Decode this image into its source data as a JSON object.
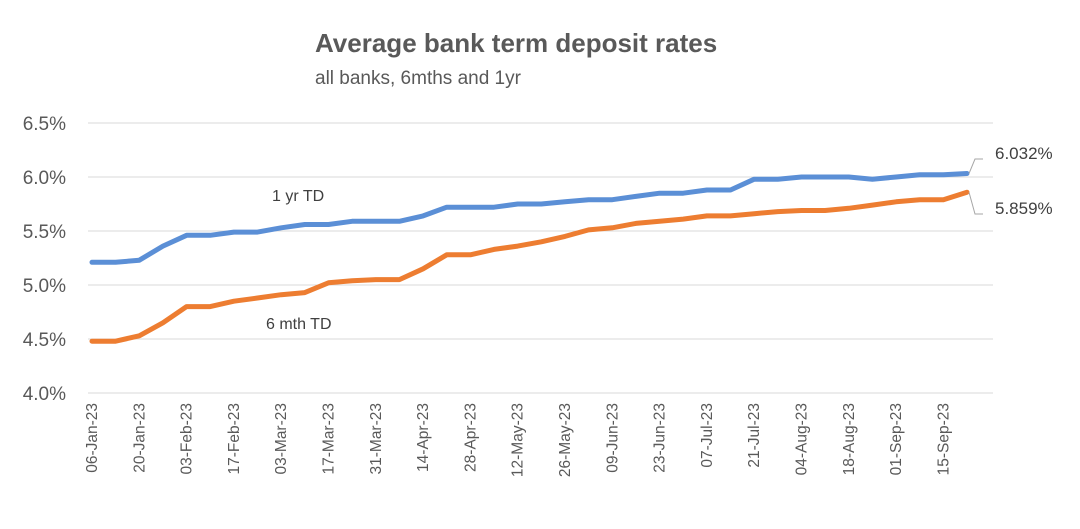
{
  "chart_data": {
    "type": "line",
    "title": "Average bank term deposit rates",
    "subtitle": "all banks, 6mths and 1yr",
    "ylim": [
      4.0,
      6.5
    ],
    "y_ticks": [
      "6.5%",
      "6.0%",
      "5.5%",
      "5.0%",
      "4.5%",
      "4.0%"
    ],
    "y_tick_values": [
      6.5,
      6.0,
      5.5,
      5.0,
      4.5,
      4.0
    ],
    "x_tick_labels": [
      "06-Jan-23",
      "20-Jan-23",
      "03-Feb-23",
      "17-Feb-23",
      "03-Mar-23",
      "17-Mar-23",
      "31-Mar-23",
      "14-Apr-23",
      "28-Apr-23",
      "12-May-23",
      "26-May-23",
      "09-Jun-23",
      "23-Jun-23",
      "07-Jul-23",
      "21-Jul-23",
      "04-Aug-23",
      "18-Aug-23",
      "01-Sep-23",
      "15-Sep-23"
    ],
    "grid": true,
    "legend": "none",
    "series": [
      {
        "name": "1 yr TD",
        "color": "#5b8fd6",
        "end_label": "6.032%",
        "values": [
          5.21,
          5.21,
          5.23,
          5.36,
          5.46,
          5.46,
          5.49,
          5.49,
          5.53,
          5.56,
          5.56,
          5.59,
          5.59,
          5.59,
          5.64,
          5.72,
          5.72,
          5.72,
          5.75,
          5.75,
          5.77,
          5.79,
          5.79,
          5.82,
          5.85,
          5.85,
          5.88,
          5.88,
          5.98,
          5.98,
          6.0,
          6.0,
          6.0,
          5.98,
          6.0,
          6.02,
          6.02,
          6.032
        ]
      },
      {
        "name": "6 mth TD",
        "color": "#ed7d31",
        "end_label": "5.859%",
        "values": [
          4.48,
          4.48,
          4.53,
          4.65,
          4.8,
          4.8,
          4.85,
          4.88,
          4.91,
          4.93,
          5.02,
          5.04,
          5.05,
          5.05,
          5.15,
          5.28,
          5.28,
          5.33,
          5.36,
          5.4,
          5.45,
          5.51,
          5.53,
          5.57,
          5.59,
          5.61,
          5.64,
          5.64,
          5.66,
          5.68,
          5.69,
          5.69,
          5.71,
          5.74,
          5.77,
          5.79,
          5.79,
          5.859
        ]
      }
    ]
  }
}
